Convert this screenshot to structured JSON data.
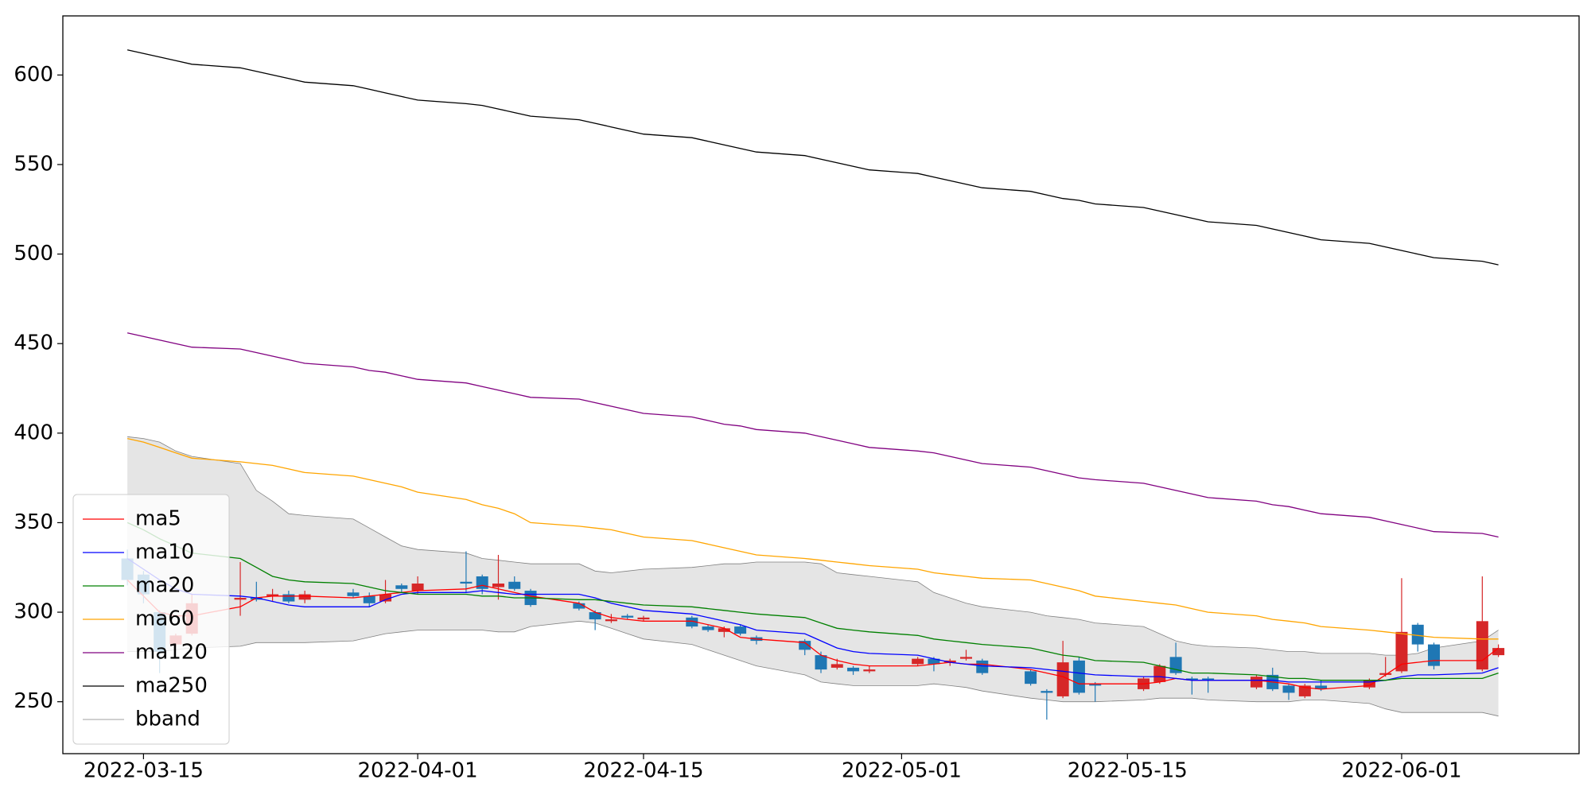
{
  "chart_data": {
    "type": "candlestick",
    "x": [
      "2022-03-14",
      "2022-03-15",
      "2022-03-16",
      "2022-03-17",
      "2022-03-18",
      "2022-03-21",
      "2022-03-22",
      "2022-03-23",
      "2022-03-24",
      "2022-03-25",
      "2022-03-28",
      "2022-03-29",
      "2022-03-30",
      "2022-03-31",
      "2022-04-01",
      "2022-04-04",
      "2022-04-05",
      "2022-04-06",
      "2022-04-07",
      "2022-04-08",
      "2022-04-11",
      "2022-04-12",
      "2022-04-13",
      "2022-04-14",
      "2022-04-15",
      "2022-04-18",
      "2022-04-19",
      "2022-04-20",
      "2022-04-21",
      "2022-04-22",
      "2022-04-25",
      "2022-04-26",
      "2022-04-27",
      "2022-04-28",
      "2022-04-29",
      "2022-05-02",
      "2022-05-03",
      "2022-05-04",
      "2022-05-05",
      "2022-05-06",
      "2022-05-09",
      "2022-05-10",
      "2022-05-11",
      "2022-05-12",
      "2022-05-13",
      "2022-05-16",
      "2022-05-17",
      "2022-05-18",
      "2022-05-19",
      "2022-05-20",
      "2022-05-23",
      "2022-05-24",
      "2022-05-25",
      "2022-05-26",
      "2022-05-27",
      "2022-05-30",
      "2022-05-31",
      "2022-06-01",
      "2022-06-02",
      "2022-06-03",
      "2022-06-06",
      "2022-06-07"
    ],
    "candles": {
      "up_color": "#d62728",
      "down_color": "#1f77b4",
      "open": [
        330,
        321,
        300,
        282,
        288,
        307,
        308,
        309,
        310,
        307,
        311,
        309,
        306,
        315,
        312,
        317,
        320,
        314,
        317,
        312,
        305,
        300,
        295,
        298,
        296,
        297,
        292,
        289,
        292,
        286,
        284,
        276,
        269,
        269,
        267,
        271,
        274,
        272,
        274,
        273,
        267,
        256,
        253,
        273,
        260,
        257,
        261,
        275,
        263,
        263,
        258,
        265,
        259,
        253,
        259,
        258,
        265,
        267,
        293,
        282,
        268,
        276
      ],
      "high": [
        335,
        323,
        301,
        288,
        310,
        328,
        317,
        313,
        312,
        312,
        313,
        311,
        318,
        316,
        320,
        334,
        321,
        332,
        320,
        313,
        306,
        301,
        299,
        299,
        298,
        298,
        293,
        292,
        293,
        287,
        285,
        278,
        274,
        270,
        270,
        275,
        275,
        274,
        279,
        274,
        268,
        257,
        284,
        275,
        261,
        264,
        271,
        283,
        264,
        264,
        265,
        269,
        260,
        260,
        262,
        263,
        275,
        319,
        294,
        283,
        320,
        282
      ],
      "low": [
        315,
        305,
        266,
        281,
        287,
        298,
        306,
        306,
        305,
        305,
        308,
        303,
        305,
        311,
        310,
        311,
        310,
        307,
        312,
        303,
        301,
        290,
        294,
        296,
        295,
        291,
        289,
        286,
        287,
        282,
        276,
        266,
        268,
        265,
        266,
        270,
        267,
        270,
        273,
        265,
        259,
        240,
        252,
        254,
        250,
        256,
        260,
        265,
        254,
        255,
        257,
        256,
        251,
        252,
        256,
        257,
        264,
        266,
        278,
        268,
        267,
        275
      ],
      "close": [
        318,
        310,
        278,
        287,
        305,
        308,
        307,
        310,
        306,
        310,
        309,
        305,
        310,
        313,
        316,
        316,
        313,
        316,
        313,
        304,
        302,
        296,
        296,
        297,
        297,
        292,
        290,
        291,
        288,
        284,
        279,
        268,
        271,
        267,
        268,
        274,
        271,
        273,
        275,
        266,
        260,
        255,
        272,
        255,
        259,
        263,
        270,
        266,
        262,
        262,
        264,
        257,
        255,
        259,
        257,
        262,
        266,
        289,
        282,
        270,
        295,
        280
      ]
    },
    "series": [
      {
        "name": "ma5",
        "color": "#ff0000",
        "values": [
          318,
          309,
          300,
          298,
          298,
          303,
          308,
          309,
          309,
          309,
          308,
          309,
          310,
          311,
          312,
          313,
          315,
          313,
          311,
          309,
          305,
          300,
          297,
          296,
          295,
          295,
          293,
          291,
          286,
          285,
          283,
          276,
          273,
          271,
          270,
          270,
          271,
          272,
          271,
          271,
          268,
          266,
          264,
          260,
          260,
          260,
          261,
          263,
          262,
          262,
          262,
          261,
          260,
          258,
          257,
          259,
          265,
          271,
          272,
          273,
          273,
          280
        ]
      },
      {
        "name": "ma10",
        "color": "#0000ff",
        "values": [
          330,
          324,
          318,
          313,
          310,
          309,
          308,
          306,
          304,
          303,
          303,
          303,
          307,
          310,
          311,
          311,
          312,
          311,
          310,
          310,
          310,
          308,
          305,
          303,
          301,
          299,
          297,
          295,
          293,
          290,
          288,
          284,
          280,
          278,
          277,
          276,
          274,
          272,
          271,
          270,
          269,
          268,
          267,
          266,
          265,
          264,
          264,
          263,
          262,
          262,
          262,
          262,
          261,
          261,
          261,
          261,
          262,
          264,
          265,
          265,
          266,
          269
        ]
      },
      {
        "name": "ma20",
        "color": "#008000",
        "values": [
          350,
          346,
          341,
          337,
          333,
          330,
          325,
          320,
          318,
          317,
          316,
          314,
          312,
          311,
          310,
          310,
          309,
          309,
          308,
          308,
          307,
          307,
          306,
          305,
          304,
          303,
          302,
          301,
          300,
          299,
          297,
          294,
          291,
          290,
          289,
          287,
          285,
          284,
          283,
          282,
          280,
          278,
          276,
          275,
          273,
          272,
          270,
          268,
          266,
          266,
          265,
          264,
          263,
          263,
          262,
          262,
          262,
          263,
          263,
          263,
          263,
          266
        ]
      },
      {
        "name": "ma60",
        "color": "#ffa500",
        "values": [
          397,
          395,
          392,
          389,
          386,
          384,
          383,
          382,
          380,
          378,
          376,
          374,
          372,
          370,
          367,
          363,
          360,
          358,
          355,
          350,
          348,
          347,
          346,
          344,
          342,
          340,
          338,
          336,
          334,
          332,
          330,
          329,
          328,
          327,
          326,
          324,
          322,
          321,
          320,
          319,
          318,
          316,
          314,
          312,
          309,
          306,
          305,
          304,
          302,
          300,
          298,
          296,
          295,
          294,
          292,
          290,
          289,
          288,
          287,
          286,
          285,
          285
        ]
      },
      {
        "name": "ma120",
        "color": "#800080",
        "values": [
          456,
          454,
          452,
          450,
          448,
          447,
          445,
          443,
          441,
          439,
          437,
          435,
          434,
          432,
          430,
          428,
          426,
          424,
          422,
          420,
          419,
          417,
          415,
          413,
          411,
          409,
          407,
          405,
          404,
          402,
          400,
          398,
          396,
          394,
          392,
          390,
          389,
          387,
          385,
          383,
          381,
          379,
          377,
          375,
          374,
          372,
          370,
          368,
          366,
          364,
          362,
          360,
          359,
          357,
          355,
          353,
          351,
          349,
          347,
          345,
          344,
          342
        ]
      },
      {
        "name": "ma250",
        "color": "#000000",
        "values": [
          614,
          612,
          610,
          608,
          606,
          604,
          602,
          600,
          598,
          596,
          594,
          592,
          590,
          588,
          586,
          584,
          583,
          581,
          579,
          577,
          575,
          573,
          571,
          569,
          567,
          565,
          563,
          561,
          559,
          557,
          555,
          553,
          551,
          549,
          547,
          545,
          543,
          541,
          539,
          537,
          535,
          533,
          531,
          530,
          528,
          526,
          524,
          522,
          520,
          518,
          516,
          514,
          512,
          510,
          508,
          506,
          504,
          502,
          500,
          498,
          496,
          494
        ]
      }
    ],
    "bband": {
      "name": "bband",
      "color": "#808080",
      "fill": "#e5e5e5",
      "upper": [
        398,
        397,
        395,
        390,
        387,
        383,
        368,
        362,
        355,
        354,
        352,
        347,
        342,
        337,
        335,
        333,
        330,
        329,
        328,
        327,
        327,
        323,
        322,
        323,
        324,
        325,
        326,
        327,
        327,
        328,
        328,
        327,
        322,
        321,
        320,
        317,
        311,
        308,
        305,
        303,
        300,
        298,
        297,
        296,
        294,
        292,
        288,
        284,
        282,
        281,
        280,
        279,
        278,
        278,
        277,
        277,
        276,
        276,
        277,
        280,
        284,
        290
      ],
      "lower": [
        278,
        278,
        278,
        279,
        280,
        281,
        283,
        283,
        283,
        283,
        284,
        286,
        288,
        289,
        290,
        290,
        290,
        289,
        289,
        292,
        295,
        294,
        291,
        288,
        285,
        282,
        279,
        276,
        273,
        270,
        265,
        261,
        260,
        259,
        259,
        259,
        260,
        259,
        258,
        256,
        252,
        251,
        250,
        250,
        250,
        251,
        252,
        252,
        252,
        251,
        250,
        250,
        250,
        251,
        251,
        249,
        246,
        244,
        244,
        244,
        244,
        242
      ]
    },
    "xlim": [
      "2022-03-10",
      "2022-06-12"
    ],
    "xticks": [
      "2022-03-15",
      "2022-04-01",
      "2022-04-15",
      "2022-05-01",
      "2022-05-15",
      "2022-06-01"
    ],
    "ylim": [
      221,
      633
    ],
    "yticks": [
      250,
      300,
      350,
      400,
      450,
      500,
      550,
      600
    ],
    "legend": "lower left"
  }
}
